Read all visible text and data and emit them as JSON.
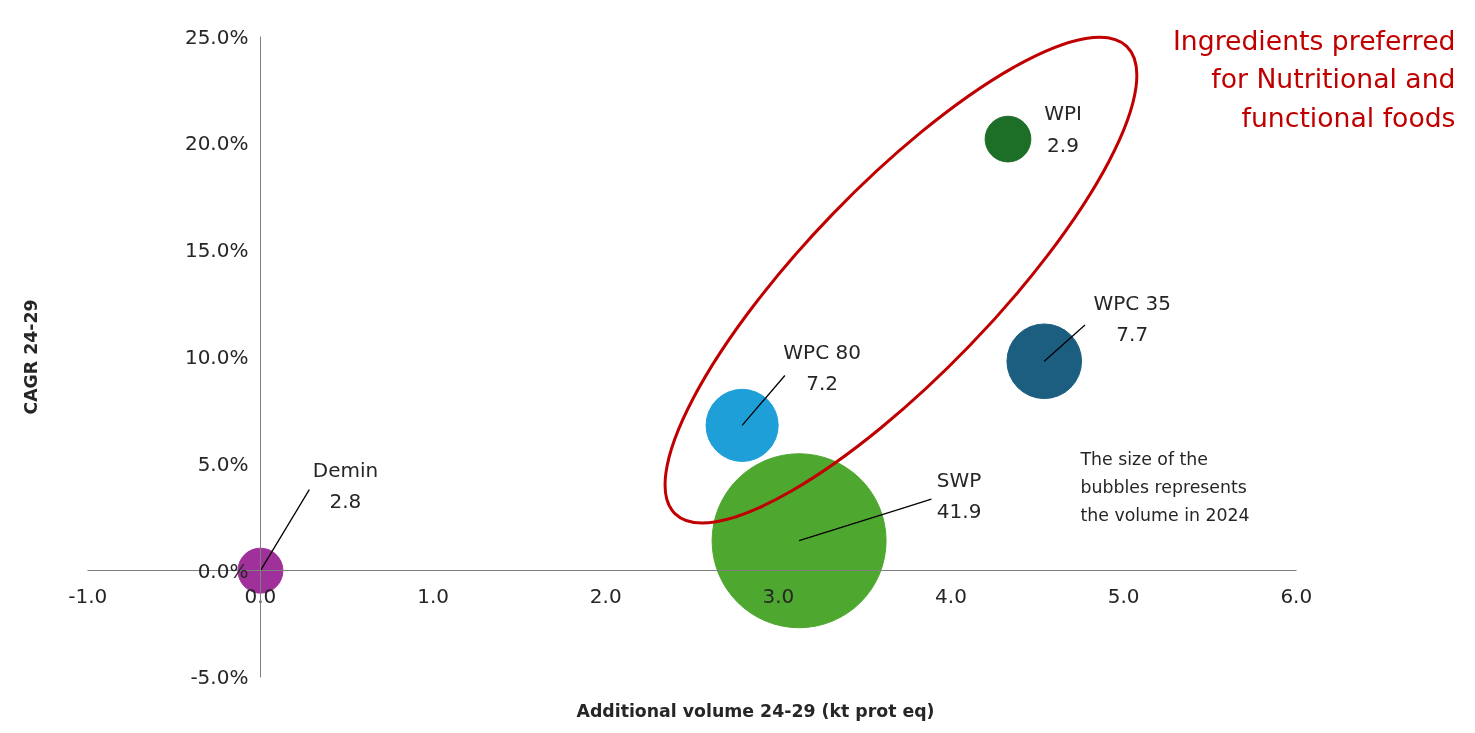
{
  "chart_data": {
    "type": "bubble",
    "xlabel": "Additional volume 24-29 (kt prot eq)",
    "ylabel": "CAGR 24-29",
    "xlim": [
      -1,
      6
    ],
    "xticks": [
      {
        "value": -1,
        "label": "-1.0"
      },
      {
        "value": 0,
        "label": "0.0"
      },
      {
        "value": 1,
        "label": "1.0"
      },
      {
        "value": 2,
        "label": "2.0"
      },
      {
        "value": 3,
        "label": "3.0"
      },
      {
        "value": 4,
        "label": "4.0"
      },
      {
        "value": 5,
        "label": "5.0"
      },
      {
        "value": 6,
        "label": "6.0"
      }
    ],
    "ylim": [
      -5,
      25
    ],
    "yticks": [
      {
        "value": -5,
        "label": "-5.0%"
      },
      {
        "value": 0,
        "label": "0.0%"
      },
      {
        "value": 5,
        "label": "5.0%"
      },
      {
        "value": 10,
        "label": "10.0%"
      },
      {
        "value": 15,
        "label": "15.0%"
      },
      {
        "value": 20,
        "label": "20.0%"
      },
      {
        "value": 25,
        "label": "25.0%"
      }
    ],
    "grid": false,
    "legend": false,
    "series": [
      {
        "name": "Demin",
        "color": "#a0309a",
        "x": [
          0
        ],
        "values": [
          0
        ],
        "sizes": [
          2.8
        ],
        "value_labels": [
          "2.8"
        ]
      },
      {
        "name": "WPC 80",
        "color": "#1e9fd8",
        "x": [
          2.79
        ],
        "values": [
          6.8
        ],
        "sizes": [
          7.2
        ],
        "value_labels": [
          "7.2"
        ]
      },
      {
        "name": "SWP",
        "color": "#4ea72e",
        "x": [
          3.12
        ],
        "values": [
          1.4
        ],
        "sizes": [
          41.9
        ],
        "value_labels": [
          "41.9"
        ]
      },
      {
        "name": "WPC 35",
        "color": "#1b5e80",
        "x": [
          4.54
        ],
        "values": [
          9.8
        ],
        "sizes": [
          7.7
        ],
        "value_labels": [
          "7.7"
        ]
      },
      {
        "name": "WPI",
        "color": "#1d6e26",
        "x": [
          4.33
        ],
        "values": [
          20.2
        ],
        "sizes": [
          2.9
        ],
        "value_labels": [
          "2.9"
        ]
      }
    ],
    "annotations": [
      "Ingredients preferred\nfor Nutritional and\nfunctional foods",
      "The size of the\nbubbles represents\nthe volume in 2024"
    ]
  }
}
